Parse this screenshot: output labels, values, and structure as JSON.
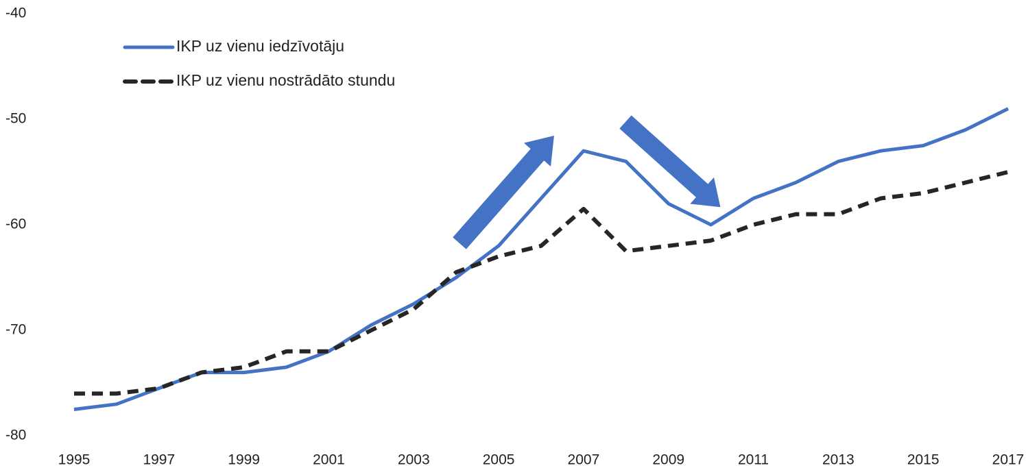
{
  "chart_data": {
    "type": "line",
    "x": [
      1995,
      1996,
      1997,
      1998,
      1999,
      2000,
      2001,
      2002,
      2003,
      2004,
      2005,
      2006,
      2007,
      2008,
      2009,
      2010,
      2011,
      2012,
      2013,
      2014,
      2015,
      2016,
      2017
    ],
    "series": [
      {
        "name": "IKP uz vienu iedzīvotāju",
        "color": "#4472c4",
        "dash": false,
        "values": [
          -77.5,
          -77,
          -75.5,
          -74,
          -74,
          -73.5,
          -72,
          -69.5,
          -67.5,
          -65,
          -62,
          -57.5,
          -53,
          -54,
          -58,
          -60,
          -57.5,
          -56,
          -54,
          -53,
          -52.5,
          -51,
          -49
        ]
      },
      {
        "name": "IKP uz vienu nostrādāto stundu",
        "color": "#262626",
        "dash": true,
        "values": [
          -76,
          -76,
          -75.5,
          -74,
          -73.5,
          -72,
          -72,
          -70,
          -68,
          -64.5,
          -63,
          -62,
          -58.5,
          -62.5,
          -62,
          -61.5,
          -60,
          -59,
          -59,
          -57.5,
          -57,
          -56,
          -55
        ]
      }
    ],
    "xlim": [
      1995,
      2017
    ],
    "xticks": [
      1995,
      1997,
      1999,
      2001,
      2003,
      2005,
      2007,
      2009,
      2011,
      2013,
      2015,
      2017
    ],
    "ylim": [
      -80,
      -40
    ],
    "yticks": [
      -80,
      -70,
      -60,
      -50,
      -40
    ],
    "grid": false,
    "legend": "upper left"
  }
}
